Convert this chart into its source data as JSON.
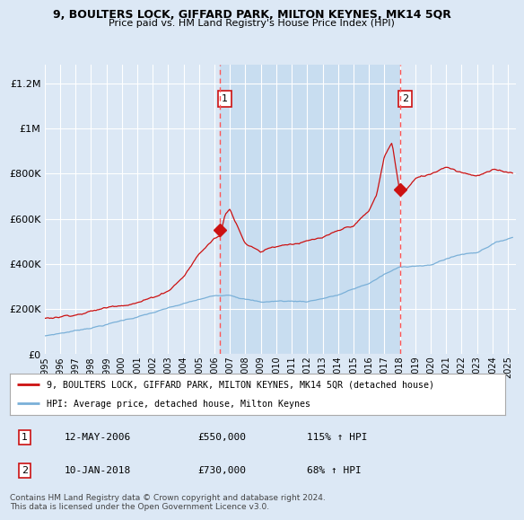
{
  "title": "9, BOULTERS LOCK, GIFFARD PARK, MILTON KEYNES, MK14 5QR",
  "subtitle": "Price paid vs. HM Land Registry's House Price Index (HPI)",
  "ytick_values": [
    0,
    200000,
    400000,
    600000,
    800000,
    1000000,
    1200000
  ],
  "ylim": [
    0,
    1280000
  ],
  "xlim_start": 1995.0,
  "xlim_end": 2025.5,
  "bg_color": "#dce8f5",
  "plot_bg_color": "#dce8f5",
  "band_color": "#c8ddf0",
  "grid_color": "#ffffff",
  "sale1_date": 2006.36,
  "sale1_price": 550000,
  "sale1_label": "1",
  "sale2_date": 2018.03,
  "sale2_price": 730000,
  "sale2_label": "2",
  "hpi_color": "#7ab0d8",
  "price_color": "#cc1111",
  "vline_color": "#ff5555",
  "legend_line1": "9, BOULTERS LOCK, GIFFARD PARK, MILTON KEYNES, MK14 5QR (detached house)",
  "legend_line2": "HPI: Average price, detached house, Milton Keynes",
  "annot1_text": "12-MAY-2006",
  "annot1_price": "£550,000",
  "annot1_hpi": "115% ↑ HPI",
  "annot2_text": "10-JAN-2018",
  "annot2_price": "£730,000",
  "annot2_hpi": "68% ↑ HPI",
  "footer": "Contains HM Land Registry data © Crown copyright and database right 2024.\nThis data is licensed under the Open Government Licence v3.0."
}
